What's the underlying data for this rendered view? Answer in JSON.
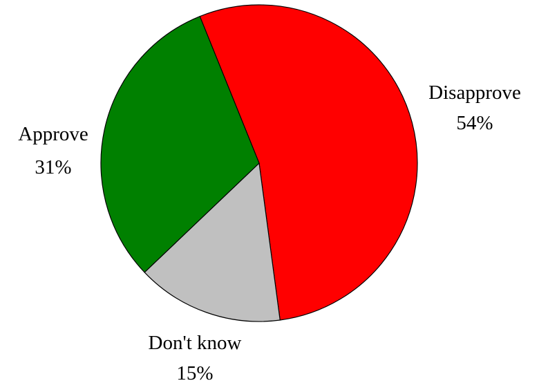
{
  "chart_data": {
    "type": "pie",
    "start_angle_deg": -22,
    "direction": "clockwise",
    "slices": [
      {
        "label": "Disapprove",
        "value": 54,
        "value_label": "54%",
        "color": "#ff0000"
      },
      {
        "label": "Don't know",
        "value": 15,
        "value_label": "15%",
        "color": "#c0c0c0"
      },
      {
        "label": "Approve",
        "value": 31,
        "value_label": "31%",
        "color": "#008000"
      }
    ]
  }
}
